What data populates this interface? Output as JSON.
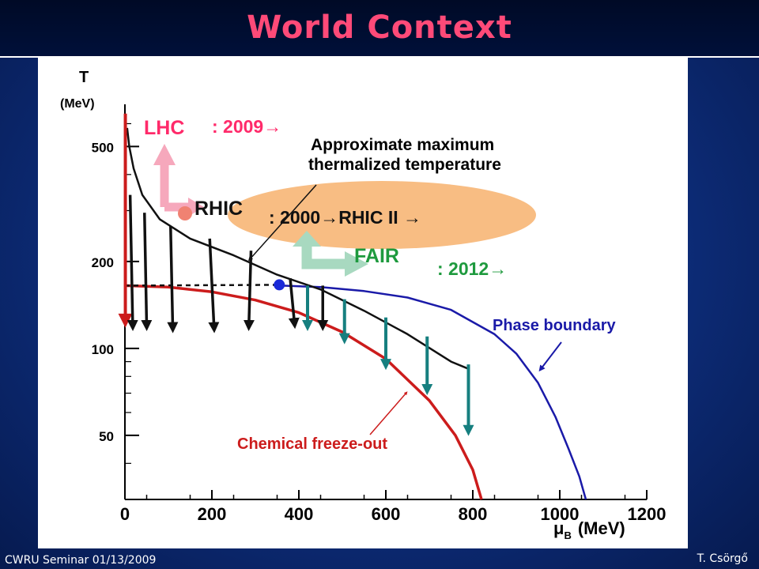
{
  "slide": {
    "title": "World Context",
    "footer_left": "CWRU Seminar 01/13/2009",
    "footer_right": "T. Csörgő"
  },
  "colors": {
    "title": "#ff4a78",
    "phase_boundary": "#1a1aa8",
    "freeze_out": "#cc1c1c",
    "thermalized": "#111111",
    "lhc": "#ff2a6a",
    "rhic_ellipse": "#f7b778",
    "fair": "#1e9a3e",
    "teal_arrows": "#167f7f"
  },
  "chart_data": {
    "type": "line",
    "x_scale": "linear",
    "y_scale": "log",
    "xlim": [
      0,
      1200
    ],
    "ylim": [
      30,
      700
    ],
    "ylabel_line1": "T",
    "ylabel_line2": "(MeV)",
    "xlabel_mu": "μ",
    "xlabel_sub": "B",
    "xlabel_unit": "(MeV)",
    "x_ticks": [
      "0",
      "200",
      "400",
      "600",
      "800",
      "1000",
      "1200"
    ],
    "x_tick_values": [
      0,
      200,
      400,
      600,
      800,
      1000,
      1200
    ],
    "y_ticks": [
      "500",
      "200",
      "100",
      "50"
    ],
    "y_tick_values": [
      500,
      200,
      100,
      50
    ],
    "series": [
      {
        "name": "Phase boundary",
        "x": [
          360,
          450,
          550,
          650,
          750,
          850,
          900,
          950,
          990,
          1020,
          1045,
          1060
        ],
        "y": [
          165,
          163,
          158,
          150,
          136,
          112,
          96,
          76,
          58,
          45,
          36,
          30
        ]
      },
      {
        "name": "Chemical freeze-out",
        "x": [
          0,
          100,
          200,
          300,
          400,
          500,
          600,
          700,
          760,
          800,
          820
        ],
        "y": [
          165,
          163,
          157,
          147,
          133,
          114,
          92,
          66,
          50,
          38,
          30
        ]
      },
      {
        "name": "Approximate maximum thermalized temperature",
        "x": [
          5,
          10,
          20,
          40,
          80,
          150,
          250,
          350,
          450,
          550,
          650,
          750,
          790
        ],
        "y": [
          580,
          500,
          420,
          340,
          280,
          240,
          210,
          180,
          160,
          135,
          112,
          90,
          85
        ]
      }
    ],
    "critical_point": {
      "x": 355,
      "y": 166
    },
    "labels": {
      "thermalized": [
        "Approximate maximum",
        "thermalized temperature"
      ],
      "phase_boundary": "Phase boundary",
      "freeze_out": "Chemical freeze-out",
      "lhc": "LHC",
      "lhc_year": ": 2009→",
      "rhic": "RHIC",
      "rhic_year": ": 2000→RHIC II →",
      "fair": "FAIR",
      "fair_year": ": 2012→"
    },
    "black_arrows": [
      {
        "x0": 12,
        "y0": 340,
        "x1": 18,
        "y1": 120
      },
      {
        "x0": 45,
        "y0": 295,
        "x1": 50,
        "y1": 120
      },
      {
        "x0": 105,
        "y0": 265,
        "x1": 110,
        "y1": 118
      },
      {
        "x0": 195,
        "y0": 240,
        "x1": 205,
        "y1": 118
      },
      {
        "x0": 290,
        "y0": 218,
        "x1": 285,
        "y1": 120
      },
      {
        "x0": 380,
        "y0": 175,
        "x1": 390,
        "y1": 122
      },
      {
        "x0": 455,
        "y0": 165,
        "x1": 455,
        "y1": 120
      }
    ],
    "teal_arrows": [
      {
        "x": 420,
        "y0": 165,
        "y1": 120
      },
      {
        "x": 505,
        "y0": 148,
        "y1": 108
      },
      {
        "x": 600,
        "y0": 128,
        "y1": 88
      },
      {
        "x": 695,
        "y0": 110,
        "y1": 72
      },
      {
        "x": 790,
        "y0": 88,
        "y1": 52
      }
    ]
  }
}
